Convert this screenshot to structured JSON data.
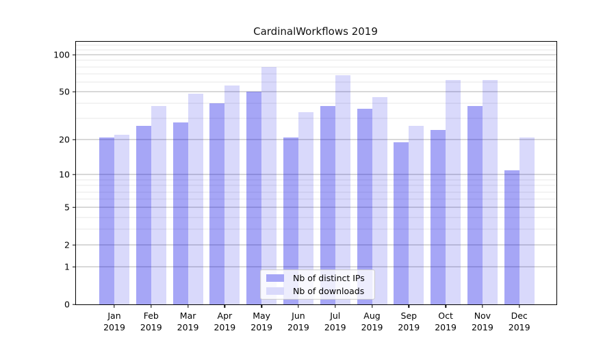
{
  "figure": {
    "title": "CardinalWorkflows 2019"
  },
  "chart_data": {
    "type": "bar",
    "title": "CardinalWorkflows 2019",
    "categories": [
      "Jan",
      "Feb",
      "Mar",
      "Apr",
      "May",
      "Jun",
      "Jul",
      "Aug",
      "Sep",
      "Oct",
      "Nov",
      "Dec"
    ],
    "category_year": "2019",
    "series": [
      {
        "name": "Nb of distinct IPs",
        "color": "#a6a6f6",
        "fill_rgba": "rgba(0,0,230,0.35)",
        "values": [
          21,
          26,
          28,
          40,
          50,
          21,
          38,
          36,
          19,
          24,
          38,
          11
        ]
      },
      {
        "name": "Nb of downloads",
        "color": "#d9d9fb",
        "fill_rgba": "rgba(0,0,230,0.15)",
        "values": [
          22,
          38,
          48,
          56,
          79,
          34,
          68,
          45,
          26,
          62,
          62,
          21
        ]
      }
    ],
    "xlabel": "",
    "ylabel": "",
    "yscale": "log1p",
    "ylim": [
      0,
      127.5
    ],
    "y_major_ticks": [
      0,
      1,
      2,
      5,
      10,
      20,
      50,
      100
    ],
    "y_minor_ticks": [
      3,
      4,
      6,
      7,
      8,
      9,
      30,
      40,
      60,
      70,
      80,
      90,
      110,
      120
    ],
    "grid": "on",
    "legend_position": "bottom-center"
  }
}
